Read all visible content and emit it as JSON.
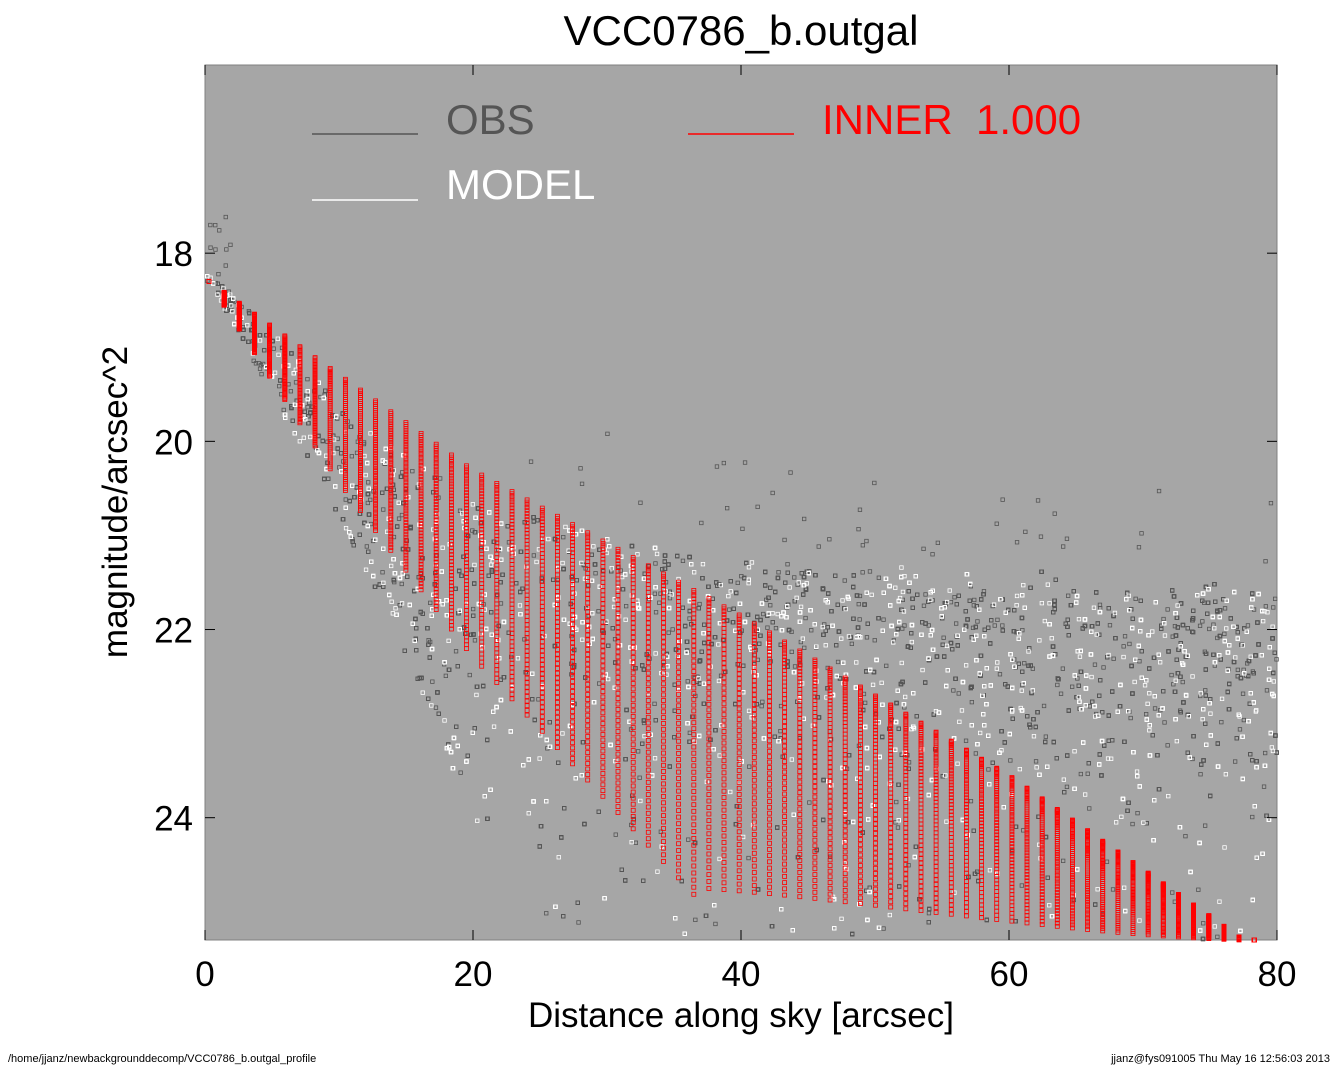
{
  "chart_data": {
    "type": "scatter",
    "title": "VCC0786_b.outgal",
    "xlabel": "Distance along sky [arcsec]",
    "ylabel": "magnitude/arcsec^2",
    "xlim": [
      0,
      80
    ],
    "ylim": [
      25.3,
      16.0
    ],
    "y_inverted": true,
    "xticks": [
      0,
      20,
      40,
      60,
      80
    ],
    "yticks": [
      18,
      20,
      22,
      24
    ],
    "background": "#a6a6a6",
    "legend": [
      {
        "name": "OBS",
        "color": "#555555"
      },
      {
        "name": "MODEL",
        "color": "#ffffff"
      },
      {
        "name": "INNER  1.000",
        "color": "#ff0000"
      }
    ],
    "series": [
      {
        "name": "OBS",
        "color": "#555555",
        "description_points": [
          [
            0.3,
            18.3
          ],
          [
            5,
            18.9
          ],
          [
            10,
            19.7
          ],
          [
            20,
            20.7
          ],
          [
            30,
            21.1
          ],
          [
            40,
            21.4
          ],
          [
            60,
            21.6
          ],
          [
            80,
            21.7
          ]
        ],
        "lower_edge": [
          [
            0.3,
            18.3
          ],
          [
            10,
            20.8
          ],
          [
            16,
            22.6
          ],
          [
            20,
            24.0
          ],
          [
            24,
            25.3
          ]
        ],
        "noise_band": [
          [
            20,
            20.5,
            25.3
          ],
          [
            40,
            21.0,
            25.3
          ],
          [
            60,
            21.3,
            25.3
          ],
          [
            80,
            21.3,
            25.3
          ]
        ]
      },
      {
        "name": "MODEL",
        "color": "#ffffff",
        "description_points": [
          [
            0.3,
            18.3
          ],
          [
            20,
            20.9
          ],
          [
            40,
            21.6
          ],
          [
            80,
            21.8
          ]
        ]
      },
      {
        "name": "INNER  1.000",
        "color": "#ff0000",
        "upper_edge": [
          [
            0.3,
            18.3
          ],
          [
            20,
            20.3
          ],
          [
            40,
            21.85
          ],
          [
            60,
            23.55
          ],
          [
            77.5,
            25.3
          ]
        ],
        "lower_edge": [
          [
            0.3,
            18.3
          ],
          [
            10,
            20.5
          ],
          [
            20,
            22.5
          ],
          [
            30,
            24.2
          ],
          [
            36.5,
            25.3
          ]
        ]
      }
    ]
  },
  "footer": {
    "left": "/home/jjanz/newbackgrounddecomp/VCC0786_b.outgal_profile",
    "right": "jjanz@fys091005  Thu May 16 12:56:03 2013"
  }
}
